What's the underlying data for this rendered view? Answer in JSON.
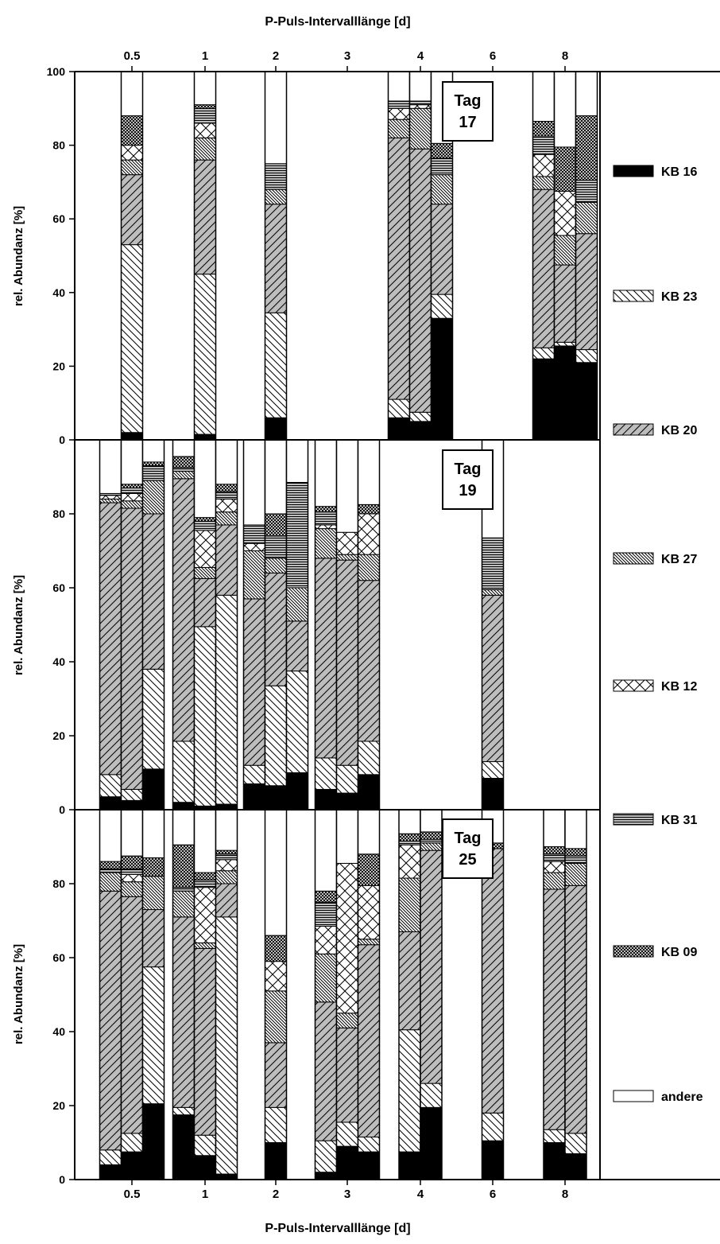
{
  "chart_data": {
    "type": "bar",
    "stacked": true,
    "title": "P-Puls-Intervalllänge [d]",
    "xlabel": "P-Puls-Intervalllänge [d]",
    "ylabel": "rel. Abundanz [%]",
    "ylim": [
      0,
      100
    ],
    "yticks": [
      "0",
      "20",
      "40",
      "60",
      "80",
      "100"
    ],
    "yticks_inner": [
      "0",
      "20",
      "40",
      "60",
      "80"
    ],
    "categories": [
      "0.5",
      "1",
      "2",
      "3",
      "4",
      "6",
      "8"
    ],
    "components": [
      {
        "key": "kb16",
        "name": "KB 16",
        "pattern": "solid-black"
      },
      {
        "key": "kb23",
        "name": "KB 23",
        "pattern": "white-backslash"
      },
      {
        "key": "kb20",
        "name": "KB 20",
        "pattern": "gray-slash"
      },
      {
        "key": "kb27",
        "name": "KB 27",
        "pattern": "dense-backslash"
      },
      {
        "key": "kb12",
        "name": "KB 12",
        "pattern": "cross"
      },
      {
        "key": "kb31",
        "name": "KB 31",
        "pattern": "gray-horizontal"
      },
      {
        "key": "kb09",
        "name": "KB 09",
        "pattern": "crosshatch"
      },
      {
        "key": "andere",
        "name": "andere",
        "pattern": "white"
      }
    ],
    "panels": [
      {
        "label_line1": "Tag",
        "label_line2": "17",
        "groups": [
          {
            "category": "0.5",
            "bars": [
              [
                2,
                51,
                19,
                4,
                4,
                0,
                8,
                12
              ]
            ]
          },
          {
            "category": "1",
            "bars": [
              [
                1.5,
                43.5,
                31,
                6,
                4,
                4,
                1,
                9
              ]
            ]
          },
          {
            "category": "2",
            "bars": [
              [
                6,
                28.5,
                29.5,
                4,
                0,
                7,
                0,
                25
              ]
            ]
          },
          {
            "category": "3",
            "bars": []
          },
          {
            "category": "4",
            "bars": [
              [
                6,
                5,
                71,
                5,
                3,
                2,
                0,
                8
              ],
              [
                5,
                2.5,
                71.5,
                11,
                1,
                1,
                0,
                8
              ],
              [
                33,
                6.5,
                24.5,
                8,
                0,
                4.5,
                4,
                19.5
              ]
            ]
          },
          {
            "category": "6",
            "bars": []
          },
          {
            "category": "8",
            "bars": [
              [
                22,
                3,
                43,
                3.5,
                6,
                5,
                4,
                13.5
              ],
              [
                25.5,
                1,
                21,
                8,
                12,
                0,
                12,
                20.5
              ],
              [
                21,
                3.5,
                31.5,
                8.5,
                0,
                6,
                17.5,
                12
              ]
            ]
          }
        ]
      },
      {
        "label_line1": "Tag",
        "label_line2": "19",
        "groups": [
          {
            "category": "0.5",
            "bars": [
              [
                3.5,
                6,
                73.5,
                1,
                1,
                0.5,
                0,
                14.5
              ],
              [
                2.5,
                3,
                76,
                2,
                2,
                1.5,
                1,
                12
              ],
              [
                11,
                27,
                42,
                9,
                0,
                4,
                1,
                6
              ]
            ]
          },
          {
            "category": "1",
            "bars": [
              [
                2,
                16.5,
                71,
                2,
                0,
                1,
                3,
                4.5
              ],
              [
                1,
                48.5,
                13,
                3,
                10,
                2.5,
                1,
                21
              ],
              [
                1.5,
                56.5,
                19,
                3.5,
                3.5,
                2,
                2,
                12
              ]
            ]
          },
          {
            "category": "2",
            "bars": [
              [
                7,
                5,
                45,
                13,
                2,
                5,
                0,
                23
              ],
              [
                6.5,
                27,
                30.5,
                4,
                0,
                6,
                6,
                20
              ],
              [
                10,
                27.5,
                13.5,
                9,
                0,
                28.5,
                0,
                11.5
              ]
            ]
          },
          {
            "category": "3",
            "bars": [
              [
                5.5,
                8.5,
                54,
                8,
                1,
                3.5,
                1.5,
                18
              ],
              [
                4.5,
                7.5,
                55.5,
                1.5,
                6,
                0,
                0,
                25
              ],
              [
                9.5,
                9,
                43.5,
                7,
                11,
                0,
                2.5,
                17.5
              ]
            ]
          },
          {
            "category": "4",
            "bars": []
          },
          {
            "category": "6",
            "bars": [
              [
                8.5,
                4.5,
                45,
                1.5,
                0,
                14,
                0,
                26.5
              ]
            ]
          },
          {
            "category": "8",
            "bars": []
          }
        ]
      },
      {
        "label_line1": "Tag",
        "label_line2": "25",
        "groups": [
          {
            "category": "0.5",
            "bars": [
              [
                4,
                4,
                70,
                5,
                0,
                1,
                2,
                14
              ],
              [
                7.5,
                5,
                64,
                4,
                2,
                1.5,
                3.5,
                12.5
              ],
              [
                20.5,
                37,
                15.5,
                9,
                0,
                0,
                5,
                13
              ]
            ]
          },
          {
            "category": "1",
            "bars": [
              [
                17.5,
                2,
                51.5,
                7,
                0,
                1,
                11.5,
                9.5
              ],
              [
                6.5,
                5.5,
                50.5,
                1.5,
                15,
                2,
                2,
                17
              ],
              [
                1.5,
                69.5,
                9,
                3.5,
                3,
                1.5,
                1,
                11
              ]
            ]
          },
          {
            "category": "2",
            "bars": [
              [
                10,
                9.5,
                17.5,
                14,
                8,
                0,
                7,
                34
              ]
            ]
          },
          {
            "category": "3",
            "bars": [
              [
                2,
                8.5,
                37.5,
                13,
                7.5,
                6.5,
                3,
                22
              ],
              [
                9,
                6.5,
                25.5,
                4,
                40.5,
                0,
                0,
                14.5
              ],
              [
                7.5,
                4,
                52,
                1.5,
                14.5,
                0,
                8.5,
                12
              ]
            ]
          },
          {
            "category": "4",
            "bars": [
              [
                7.5,
                33,
                26.5,
                14.5,
                9,
                1,
                2,
                6.5
              ],
              [
                19.5,
                6.5,
                63,
                2,
                0,
                1,
                2,
                6
              ]
            ]
          },
          {
            "category": "6",
            "bars": [
              [
                10.5,
                7.5,
                71.5,
                0,
                0,
                0,
                1.5,
                9
              ]
            ]
          },
          {
            "category": "8",
            "bars": [
              [
                10,
                3.5,
                65,
                4.5,
                3,
                2,
                2,
                10
              ],
              [
                7,
                5.5,
                67,
                6,
                0,
                2,
                2,
                10.5
              ]
            ]
          }
        ]
      }
    ]
  }
}
